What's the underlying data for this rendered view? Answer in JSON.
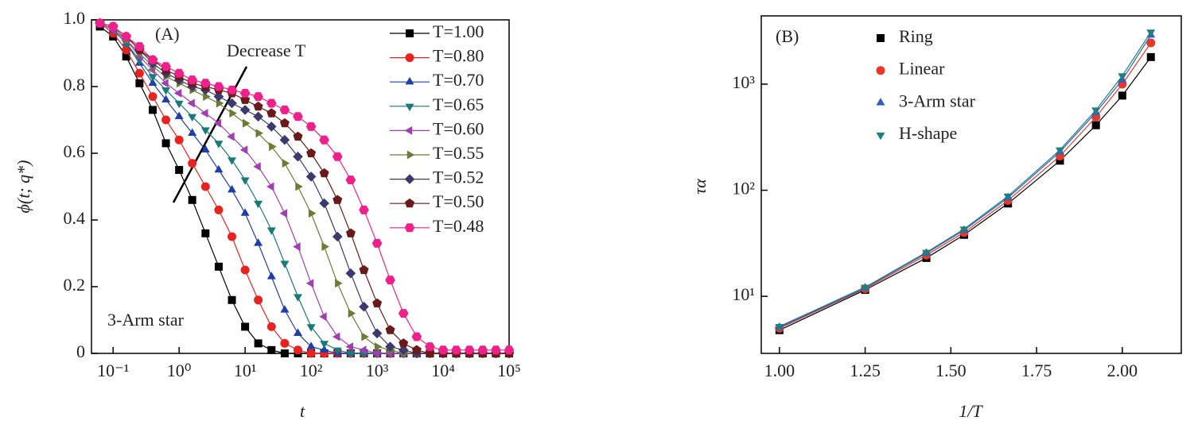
{
  "chart_data": [
    {
      "type": "line",
      "annotations": [
        "(A)",
        "Decrease T",
        "3-Arm star"
      ],
      "xlabel": "t",
      "ylabel": "ϕ(t; q*)",
      "xscale": "log",
      "xlim": [
        0.047,
        100000
      ],
      "xticks": [
        {
          "value": 0.1,
          "label": "10⁻¹"
        },
        {
          "value": 1,
          "label": "10⁰"
        },
        {
          "value": 10,
          "label": "10¹"
        },
        {
          "value": 100,
          "label": "10²"
        },
        {
          "value": 1000,
          "label": "10³"
        },
        {
          "value": 10000,
          "label": "10⁴"
        },
        {
          "value": 100000,
          "label": "10⁵"
        }
      ],
      "ylim": [
        0,
        1
      ],
      "yticks": [
        0,
        0.2,
        0.4,
        0.6,
        0.8,
        {
          "value": 1,
          "label": "1.0"
        }
      ],
      "legend": "upper right",
      "x": [
        0.063,
        0.1,
        0.158,
        0.251,
        0.398,
        0.631,
        1,
        1.58,
        2.51,
        3.98,
        6.31,
        10,
        15.8,
        25.1,
        39.8,
        63.1,
        100,
        158,
        251,
        398,
        631,
        1000,
        1580,
        2510,
        3980,
        6310,
        10000,
        15800,
        25100,
        39800,
        63100,
        100000
      ],
      "series": [
        {
          "name": "T=1.00",
          "color": "#000000",
          "marker": "square",
          "values": [
            0.98,
            0.95,
            0.89,
            0.81,
            0.73,
            0.63,
            0.55,
            0.46,
            0.36,
            0.26,
            0.16,
            0.08,
            0.03,
            0.01,
            0,
            0,
            0,
            0,
            0,
            0,
            0,
            0,
            0,
            0,
            0,
            0,
            0,
            0,
            0,
            0,
            0,
            0
          ]
        },
        {
          "name": "T=0.80",
          "color": "#e8231f",
          "marker": "circle",
          "values": [
            0.99,
            0.96,
            0.91,
            0.84,
            0.77,
            0.7,
            0.64,
            0.57,
            0.5,
            0.43,
            0.35,
            0.25,
            0.16,
            0.08,
            0.03,
            0.01,
            0,
            0,
            0,
            0,
            0,
            0,
            0,
            0,
            0,
            0,
            0,
            0,
            0,
            0,
            0,
            0
          ]
        },
        {
          "name": "T=0.70",
          "color": "#1f3fa8",
          "marker": "triangle-up",
          "values": [
            0.99,
            0.97,
            0.93,
            0.87,
            0.81,
            0.76,
            0.71,
            0.66,
            0.61,
            0.55,
            0.49,
            0.42,
            0.33,
            0.23,
            0.13,
            0.06,
            0.02,
            0.01,
            0,
            0,
            0,
            0,
            0,
            0,
            0,
            0,
            0,
            0,
            0,
            0,
            0,
            0
          ]
        },
        {
          "name": "T=0.65",
          "color": "#1a7a7a",
          "marker": "triangle-down",
          "values": [
            0.99,
            0.97,
            0.93,
            0.88,
            0.83,
            0.79,
            0.75,
            0.71,
            0.67,
            0.63,
            0.58,
            0.52,
            0.45,
            0.37,
            0.27,
            0.17,
            0.08,
            0.03,
            0.01,
            0,
            0,
            0,
            0,
            0,
            0,
            0,
            0,
            0,
            0,
            0,
            0,
            0
          ]
        },
        {
          "name": "T=0.60",
          "color": "#a040b0",
          "marker": "triangle-left",
          "values": [
            0.99,
            0.97,
            0.94,
            0.89,
            0.85,
            0.81,
            0.78,
            0.75,
            0.72,
            0.69,
            0.65,
            0.61,
            0.56,
            0.5,
            0.42,
            0.32,
            0.21,
            0.11,
            0.05,
            0.02,
            0.01,
            0,
            0,
            0,
            0,
            0,
            0,
            0,
            0,
            0,
            0,
            0
          ]
        },
        {
          "name": "T=0.55",
          "color": "#6e7a35",
          "marker": "triangle-right",
          "values": [
            0.99,
            0.98,
            0.94,
            0.9,
            0.86,
            0.83,
            0.81,
            0.79,
            0.77,
            0.75,
            0.72,
            0.69,
            0.66,
            0.62,
            0.57,
            0.5,
            0.42,
            0.32,
            0.21,
            0.12,
            0.05,
            0.02,
            0.01,
            0,
            0,
            0,
            0,
            0,
            0,
            0,
            0,
            0
          ]
        },
        {
          "name": "T=0.52",
          "color": "#3a3a6e",
          "marker": "diamond",
          "values": [
            0.99,
            0.98,
            0.95,
            0.91,
            0.87,
            0.84,
            0.82,
            0.8,
            0.79,
            0.77,
            0.75,
            0.73,
            0.71,
            0.68,
            0.64,
            0.59,
            0.53,
            0.45,
            0.35,
            0.24,
            0.14,
            0.06,
            0.02,
            0.01,
            0,
            0,
            0,
            0,
            0,
            0,
            0,
            0
          ]
        },
        {
          "name": "T=0.50",
          "color": "#6b1a1a",
          "marker": "pentagon",
          "values": [
            0.99,
            0.98,
            0.95,
            0.91,
            0.88,
            0.85,
            0.83,
            0.81,
            0.8,
            0.79,
            0.78,
            0.76,
            0.74,
            0.72,
            0.69,
            0.65,
            0.6,
            0.54,
            0.46,
            0.36,
            0.25,
            0.15,
            0.07,
            0.03,
            0.01,
            0,
            0,
            0,
            0,
            0,
            0,
            0
          ]
        },
        {
          "name": "T=0.48",
          "color": "#f0208a",
          "marker": "hexagon",
          "values": [
            0.99,
            0.98,
            0.95,
            0.92,
            0.88,
            0.86,
            0.84,
            0.82,
            0.81,
            0.8,
            0.79,
            0.78,
            0.77,
            0.75,
            0.73,
            0.71,
            0.68,
            0.64,
            0.59,
            0.52,
            0.43,
            0.33,
            0.22,
            0.12,
            0.05,
            0.02,
            0.01,
            0.01,
            0.01,
            0.01,
            0.01,
            0.01
          ]
        }
      ]
    },
    {
      "type": "line",
      "annotations": [
        "(B)"
      ],
      "xlabel": "1/T",
      "ylabel": "τα",
      "xlim": [
        0.947,
        2.172
      ],
      "xticks": [
        {
          "value": 1,
          "label": "1.00"
        },
        1.25,
        {
          "value": 1.5,
          "label": "1.50"
        },
        1.75,
        {
          "value": 2,
          "label": "2.00"
        }
      ],
      "yscale": "log",
      "ylim": [
        2.9,
        4400
      ],
      "yticks": [
        {
          "value": 10,
          "label": "10¹"
        },
        {
          "value": 100,
          "label": "10²"
        },
        {
          "value": 1000,
          "label": "10³"
        }
      ],
      "legend": "upper left",
      "x": [
        1,
        1.25,
        1.4286,
        1.5385,
        1.6667,
        1.8182,
        1.9231,
        2,
        2.0833
      ],
      "series": [
        {
          "name": "Ring",
          "color": "#000000",
          "marker": "square",
          "values": [
            4.8,
            11.5,
            23,
            38,
            75,
            190,
            410,
            780,
            1800
          ]
        },
        {
          "name": "Linear",
          "color": "#e8382a",
          "marker": "circle",
          "values": [
            5,
            11.8,
            24.5,
            40,
            80,
            210,
            490,
            1000,
            2450
          ]
        },
        {
          "name": "3-Arm star",
          "color": "#2e5fbf",
          "marker": "triangle-up",
          "values": [
            5.1,
            12,
            25.5,
            42,
            85,
            230,
            540,
            1100,
            2900
          ]
        },
        {
          "name": "H-shape",
          "color": "#1f7f80",
          "marker": "triangle-down",
          "values": [
            5.2,
            12.2,
            26,
            43,
            88,
            240,
            570,
            1200,
            3100
          ]
        }
      ]
    }
  ]
}
